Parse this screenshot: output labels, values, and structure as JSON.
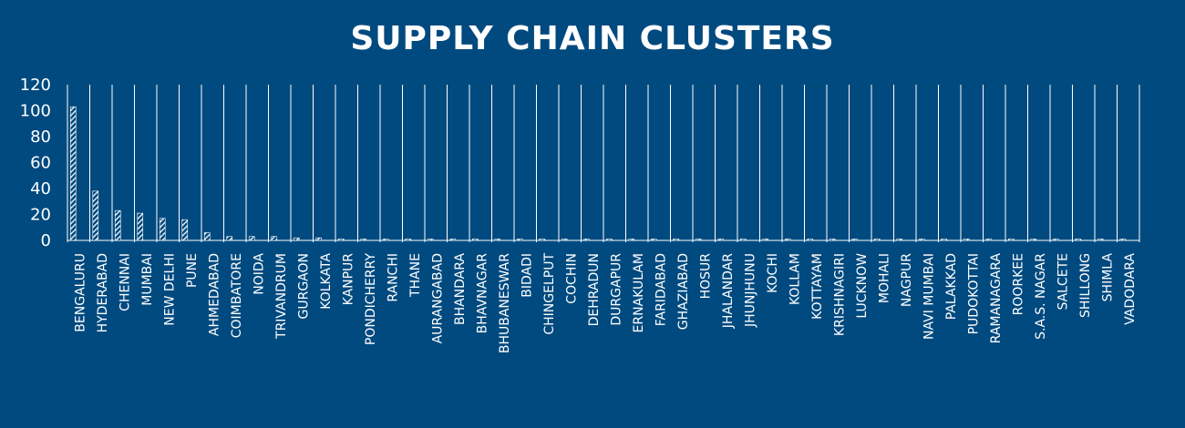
{
  "chart_data": {
    "type": "bar",
    "title": "SUPPLY CHAIN CLUSTERS",
    "xlabel": "",
    "ylabel": "",
    "ylim": [
      0,
      120
    ],
    "yticks": [
      0,
      20,
      40,
      60,
      80,
      100,
      120
    ],
    "grid": "vertical separators between categories",
    "legend": "none",
    "bar_fill": "white diagonal hatch",
    "categories": [
      "BENGALURU",
      "HYDERABAD",
      "CHENNAI",
      "MUMBAI",
      "NEW DELHI",
      "PUNE",
      "AHMEDABAD",
      "COIMBATORE",
      "NOIDA",
      "TRIVANDRUM",
      "GURGAON",
      "KOLKATA",
      "KANPUR",
      "PONDICHERRY",
      "RANCHI",
      "THANE",
      "AURANGABAD",
      "BHANDARA",
      "BHAVNAGAR",
      "BHUBANESWAR",
      "BIDADI",
      "CHINGELPUT",
      "COCHIN",
      "DEHRADUN",
      "DURGAPUR",
      "ERNAKULAM",
      "FARIDABAD",
      "GHAZIABAD",
      "HOSUR",
      "JHALANDAR",
      "JHUNJHUNU",
      "KOCHI",
      "KOLLAM",
      "KOTTAYAM",
      "KRISHNAGIRI",
      "LUCKNOW",
      "MOHALI",
      "NAGPUR",
      "NAVI MUMBAI",
      "PALAKKAD",
      "PUDOKOTTAI",
      "RAMANAGARA",
      "ROORKEE",
      "S.A.S. NAGAR",
      "SALCETE",
      "SHILLONG",
      "SHIMLA",
      "VADODARA"
    ],
    "values": [
      103,
      38,
      23,
      21,
      17,
      16,
      6,
      3,
      3,
      3,
      2,
      2,
      1,
      1,
      1,
      1,
      1,
      1,
      1,
      1,
      1,
      1,
      1,
      1,
      1,
      1,
      1,
      1,
      1,
      1,
      1,
      1,
      1,
      1,
      1,
      1,
      1,
      1,
      1,
      1,
      1,
      1,
      1,
      1,
      1,
      1,
      1,
      1
    ]
  },
  "colors": {
    "background": "#004a7f",
    "foreground": "#ffffff"
  }
}
